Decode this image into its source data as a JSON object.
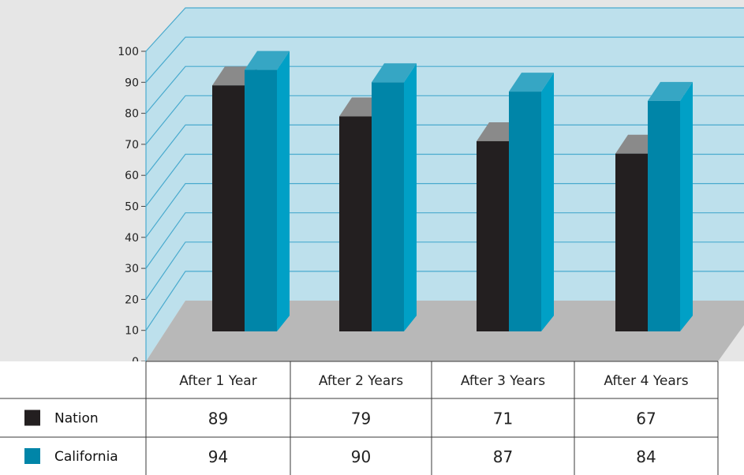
{
  "chart_data": {
    "type": "bar",
    "title": "",
    "xlabel": "",
    "ylabel": "",
    "ylim": [
      0,
      100
    ],
    "yticks": [
      0,
      10,
      20,
      30,
      40,
      50,
      60,
      70,
      80,
      90,
      100
    ],
    "categories": [
      "After 1 Year",
      "After 2 Years",
      "After 3 Years",
      "After 4 Years"
    ],
    "series": [
      {
        "name": "Nation",
        "values": [
          89,
          79,
          71,
          67
        ],
        "color": "#231f20",
        "top_color": "#8a8a8a",
        "side_color": "#111111"
      },
      {
        "name": "California",
        "values": [
          94,
          90,
          87,
          84
        ],
        "color": "#0085a8",
        "top_color": "#36a6c4",
        "side_color": "#00a0c6"
      }
    ],
    "grid": true,
    "legend": "bottom-left data table",
    "colors": {
      "back_wall": "#bde0ec",
      "floor": "#b8b8b8",
      "grid_line": "#49aace"
    }
  }
}
